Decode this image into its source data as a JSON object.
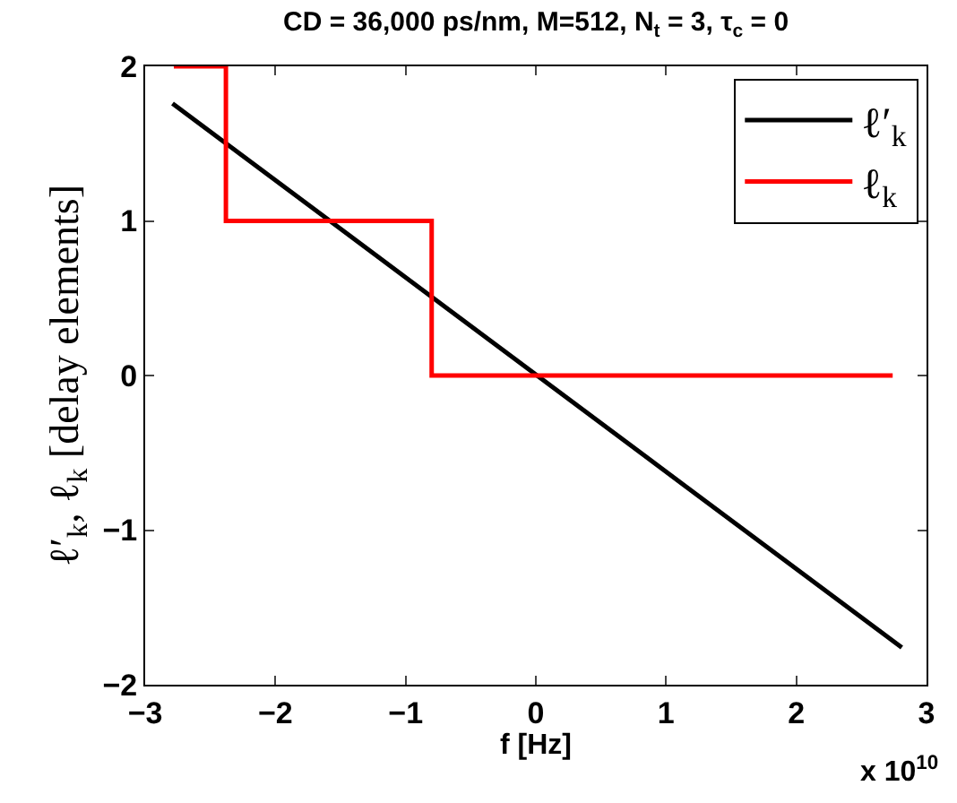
{
  "chart_data": {
    "type": "line",
    "title": "CD = 36,000 ps/nm, M=512, N$_{t}$ = 3, τ$_{c}$ = 0",
    "xlabel": "f [Hz]",
    "ylabel": "ℓ′$_{k}$, ℓ$_{k}$ [delay elements]",
    "annotations": [
      "x 10$^{10}$"
    ],
    "series": [
      {
        "name": "ℓ′$_{k}$",
        "color": "#000000",
        "x": [
          -2.79,
          2.81
        ],
        "values": [
          1.76,
          -1.76
        ]
      },
      {
        "name": "ℓ$_{k}$",
        "color": "#ff0000",
        "type": "step",
        "x": [
          -2.78,
          -2.38,
          -0.8,
          2.74
        ],
        "values": [
          2,
          1,
          0,
          0
        ]
      }
    ],
    "xlim": [
      -3,
      3
    ],
    "xticks": [
      -3,
      -2,
      -1,
      0,
      1,
      2,
      3
    ],
    "ylim": [
      -2,
      2
    ],
    "yticks": [
      -2,
      -1,
      0,
      1,
      2
    ],
    "grid": false,
    "legend": "top right",
    "line_style": "solid",
    "marker": "none"
  }
}
